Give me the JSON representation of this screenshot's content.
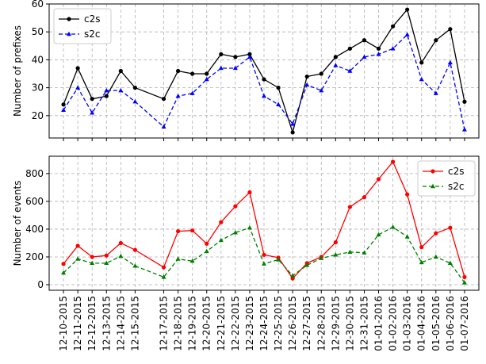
{
  "chart_data": [
    {
      "type": "line",
      "ylabel": "Number of prefixes",
      "x": [
        "12-10-2015",
        "12-11-2015",
        "12-12-2015",
        "12-13-2015",
        "12-14-2015",
        "12-15-2015",
        "12-17-2015",
        "12-18-2015",
        "12-19-2015",
        "12-20-2015",
        "12-21-2015",
        "12-22-2015",
        "12-23-2015",
        "12-24-2015",
        "12-25-2015",
        "12-26-2015",
        "12-27-2015",
        "12-28-2015",
        "12-29-2015",
        "12-30-2015",
        "12-31-2015",
        "01-01-2016",
        "01-02-2016",
        "01-03-2016",
        "01-04-2016",
        "01-05-2016",
        "01-06-2016",
        "01-07-2016"
      ],
      "series": [
        {
          "name": "c2s",
          "color": "#000000",
          "linestyle": "solid",
          "marker": "circle",
          "values": [
            24,
            37,
            26,
            27,
            36,
            30,
            26,
            36,
            35,
            35,
            42,
            41,
            42,
            33,
            30,
            14,
            34,
            35,
            41,
            44,
            47,
            44,
            52,
            58,
            39,
            47,
            51,
            25
          ]
        },
        {
          "name": "s2c",
          "color": "#0000ff",
          "linestyle": "dashed",
          "marker": "triangle",
          "values": [
            22,
            30,
            21,
            29,
            29,
            25,
            16,
            27,
            28,
            33,
            37,
            37,
            41,
            27,
            24,
            17,
            31,
            29,
            38,
            36,
            41,
            42,
            44,
            49,
            33,
            28,
            39,
            15
          ]
        }
      ],
      "xlim": [
        "12-09-2015",
        "01-08-2016"
      ],
      "ylim": [
        12,
        60
      ],
      "yticks": [
        20,
        30,
        40,
        50,
        60
      ],
      "grid": true,
      "legend": "upper-left"
    },
    {
      "type": "line",
      "ylabel": "Number of events",
      "x": [
        "12-10-2015",
        "12-11-2015",
        "12-12-2015",
        "12-13-2015",
        "12-14-2015",
        "12-15-2015",
        "12-17-2015",
        "12-18-2015",
        "12-19-2015",
        "12-20-2015",
        "12-21-2015",
        "12-22-2015",
        "12-23-2015",
        "12-24-2015",
        "12-25-2015",
        "12-26-2015",
        "12-27-2015",
        "12-28-2015",
        "12-29-2015",
        "12-30-2015",
        "12-31-2015",
        "01-01-2016",
        "01-02-2016",
        "01-03-2016",
        "01-04-2016",
        "01-05-2016",
        "01-06-2016",
        "01-07-2016"
      ],
      "series": [
        {
          "name": "c2s",
          "color": "#ff0000",
          "linestyle": "solid",
          "marker": "circle",
          "values": [
            150,
            280,
            200,
            210,
            300,
            250,
            125,
            385,
            390,
            295,
            450,
            565,
            665,
            215,
            195,
            45,
            155,
            200,
            305,
            560,
            630,
            760,
            885,
            650,
            270,
            370,
            410,
            55
          ]
        },
        {
          "name": "s2c",
          "color": "#008000",
          "linestyle": "dashed",
          "marker": "triangle",
          "values": [
            85,
            185,
            155,
            155,
            205,
            135,
            55,
            185,
            170,
            240,
            320,
            375,
            410,
            150,
            180,
            65,
            140,
            190,
            215,
            235,
            230,
            360,
            415,
            345,
            160,
            200,
            155,
            15
          ]
        }
      ],
      "xlim": [
        "12-09-2015",
        "01-08-2016"
      ],
      "ylim": [
        -40,
        925
      ],
      "yticks": [
        0,
        200,
        400,
        600,
        800
      ],
      "grid": true,
      "legend": "upper-right"
    }
  ]
}
